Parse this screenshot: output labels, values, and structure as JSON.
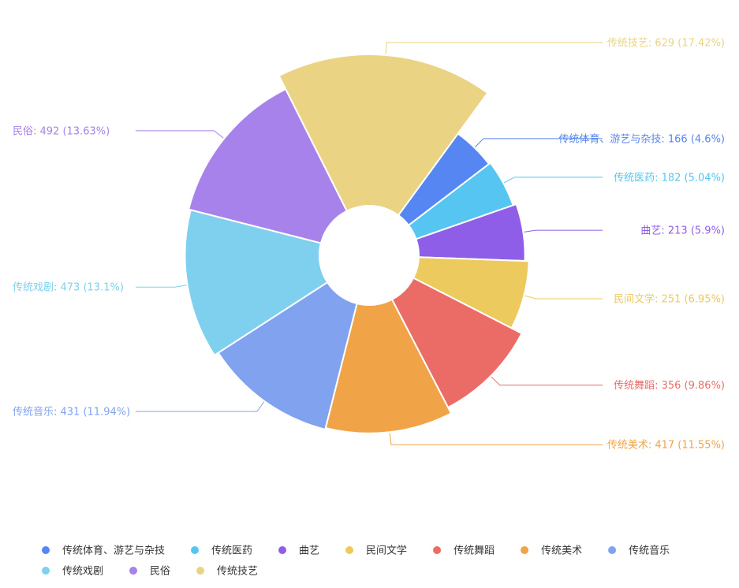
{
  "chart_data": {
    "type": "pie",
    "variant": "rose-donut",
    "title": "",
    "categories": [
      "传统体育、游艺与杂技",
      "传统医药",
      "曲艺",
      "民间文学",
      "传统舞蹈",
      "传统美术",
      "传统音乐",
      "传统戏剧",
      "民俗",
      "传统技艺"
    ],
    "values": [
      166,
      182,
      213,
      251,
      356,
      417,
      431,
      473,
      492,
      629
    ],
    "percents": [
      "4.6%",
      "5.04%",
      "5.9%",
      "6.95%",
      "9.86%",
      "11.55%",
      "11.94%",
      "13.1%",
      "13.63%",
      "17.42%"
    ],
    "labels": [
      "传统体育、游艺与杂技: 166 (4.6%)",
      "传统医药: 182 (5.04%)",
      "曲艺: 213 (5.9%)",
      "民间文学: 251 (6.95%)",
      "传统舞蹈: 356 (9.86%)",
      "传统美术: 417 (11.55%)",
      "传统音乐: 431 (11.94%)",
      "传统戏剧: 473 (13.1%)",
      "民俗: 492 (13.63%)",
      "传统技艺: 629 (17.42%)"
    ],
    "colors": [
      "#5686f2",
      "#56c5f2",
      "#8f5ee9",
      "#ecca5d",
      "#eb6c67",
      "#f0a447",
      "#81a3ef",
      "#7fd0ee",
      "#a682ea",
      "#ead382"
    ],
    "legend": {
      "position": "bottom",
      "items": [
        "传统体育、游艺与杂技",
        "传统医药",
        "曲艺",
        "民间文学",
        "传统舞蹈",
        "传统美术",
        "传统音乐",
        "传统戏剧",
        "民俗",
        "传统技艺"
      ]
    }
  }
}
